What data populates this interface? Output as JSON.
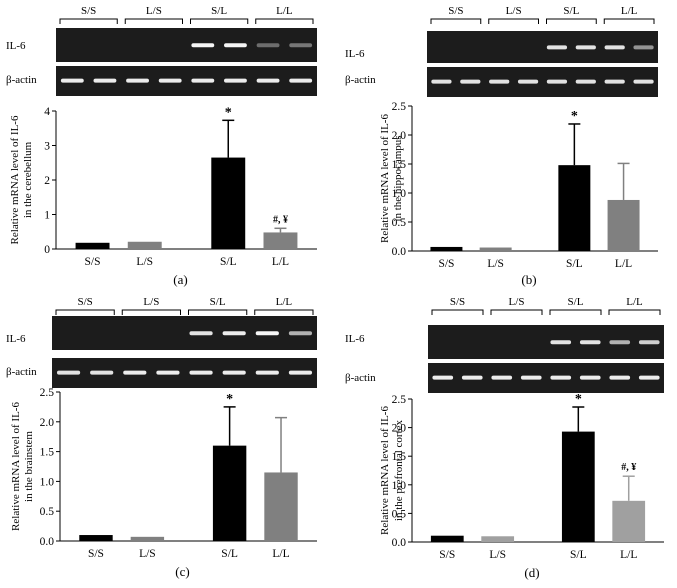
{
  "labels": {
    "il6": "IL-6",
    "actin": "β-actin"
  },
  "chart_data": [
    {
      "type": "bar",
      "panel": "(a)",
      "groups": [
        "S/S",
        "L/S",
        "S/L",
        "L/L"
      ],
      "categories": [
        "S/S",
        "L/S",
        "S/L",
        "L/L"
      ],
      "values": [
        0.18,
        0.21,
        2.65,
        0.48
      ],
      "errors": [
        0.0,
        0.0,
        1.08,
        0.12
      ],
      "bar_colors": [
        "#000000",
        "#808080",
        "#000000",
        "#808080"
      ],
      "annotations": [
        "",
        "",
        "*",
        "#, ¥"
      ],
      "ylabel_lines": [
        "Relative mRNA level of IL-6",
        "in the cerebellum"
      ],
      "ylim": [
        0,
        4
      ],
      "yticks": [
        "0",
        "1",
        "2",
        "3",
        "4"
      ],
      "gel_intensity": [
        [
          0.05,
          0.05
        ],
        [
          0.03,
          0.03
        ],
        [
          0.95,
          0.95
        ],
        [
          0.25,
          0.3
        ]
      ],
      "actin_intensity": [
        [
          0.9,
          0.9
        ],
        [
          0.9,
          0.9
        ],
        [
          0.9,
          0.9
        ],
        [
          0.9,
          0.9
        ]
      ]
    },
    {
      "type": "bar",
      "panel": "(b)",
      "groups": [
        "S/S",
        "L/S",
        "S/L",
        "L/L"
      ],
      "categories": [
        "S/S",
        "L/S",
        "S/L",
        "L/L"
      ],
      "values": [
        0.07,
        0.06,
        1.48,
        0.88
      ],
      "errors": [
        0.0,
        0.0,
        0.71,
        0.63
      ],
      "bar_colors": [
        "#000000",
        "#808080",
        "#000000",
        "#808080"
      ],
      "annotations": [
        "",
        "",
        "*",
        ""
      ],
      "ylabel_lines": [
        "Relative mRNA level of IL-6",
        "in the hippocampus"
      ],
      "ylim": [
        0,
        2.5
      ],
      "yticks": [
        "0.0",
        "0.5",
        "1.0",
        "1.5",
        "2.0",
        "2.5"
      ],
      "gel_intensity": [
        [
          0.05,
          0.05
        ],
        [
          0.03,
          0.03
        ],
        [
          0.85,
          0.85
        ],
        [
          0.85,
          0.45
        ]
      ],
      "actin_intensity": [
        [
          0.85,
          0.85
        ],
        [
          0.85,
          0.85
        ],
        [
          0.85,
          0.85
        ],
        [
          0.85,
          0.85
        ]
      ]
    },
    {
      "type": "bar",
      "panel": "(c)",
      "groups": [
        "S/S",
        "L/S",
        "S/L",
        "L/L"
      ],
      "categories": [
        "S/S",
        "L/S",
        "S/L",
        "L/L"
      ],
      "values": [
        0.1,
        0.07,
        1.6,
        1.15
      ],
      "errors": [
        0.0,
        0.0,
        0.65,
        0.92
      ],
      "bar_colors": [
        "#000000",
        "#808080",
        "#000000",
        "#808080"
      ],
      "annotations": [
        "",
        "",
        "*",
        ""
      ],
      "ylabel_lines": [
        "Relative mRNA level of IL-6",
        "in the brainstem"
      ],
      "ylim": [
        0,
        2.5
      ],
      "yticks": [
        "0.0",
        "0.5",
        "1.0",
        "1.5",
        "2.0",
        "2.5"
      ],
      "gel_intensity": [
        [
          0.03,
          0.03
        ],
        [
          0.03,
          0.03
        ],
        [
          0.85,
          0.9
        ],
        [
          0.95,
          0.6
        ]
      ],
      "actin_intensity": [
        [
          0.85,
          0.85
        ],
        [
          0.9,
          0.9
        ],
        [
          0.9,
          0.9
        ],
        [
          0.9,
          0.9
        ]
      ]
    },
    {
      "type": "bar",
      "panel": "(d)",
      "groups": [
        "S/S",
        "L/S",
        "S/L",
        "L/L"
      ],
      "categories": [
        "S/S",
        "L/S",
        "S/L",
        "L/L"
      ],
      "values": [
        0.11,
        0.1,
        1.93,
        0.72
      ],
      "errors": [
        0.0,
        0.0,
        0.43,
        0.43
      ],
      "bar_colors": [
        "#000000",
        "#a0a0a0",
        "#000000",
        "#a0a0a0"
      ],
      "annotations": [
        "",
        "",
        "*",
        "#, ¥"
      ],
      "ylabel_lines": [
        "Relative mRNA level of IL-6",
        "in the prefrontal cortex"
      ],
      "ylim": [
        0,
        2.5
      ],
      "yticks": [
        "0.0",
        "0.5",
        "1.0",
        "1.5",
        "2.0",
        "2.5"
      ],
      "gel_intensity": [
        [
          0.03,
          0.03
        ],
        [
          0.03,
          0.03
        ],
        [
          0.85,
          0.85
        ],
        [
          0.6,
          0.75
        ]
      ],
      "actin_intensity": [
        [
          0.9,
          0.9
        ],
        [
          0.9,
          0.9
        ],
        [
          0.9,
          0.9
        ],
        [
          0.9,
          0.9
        ]
      ]
    }
  ]
}
